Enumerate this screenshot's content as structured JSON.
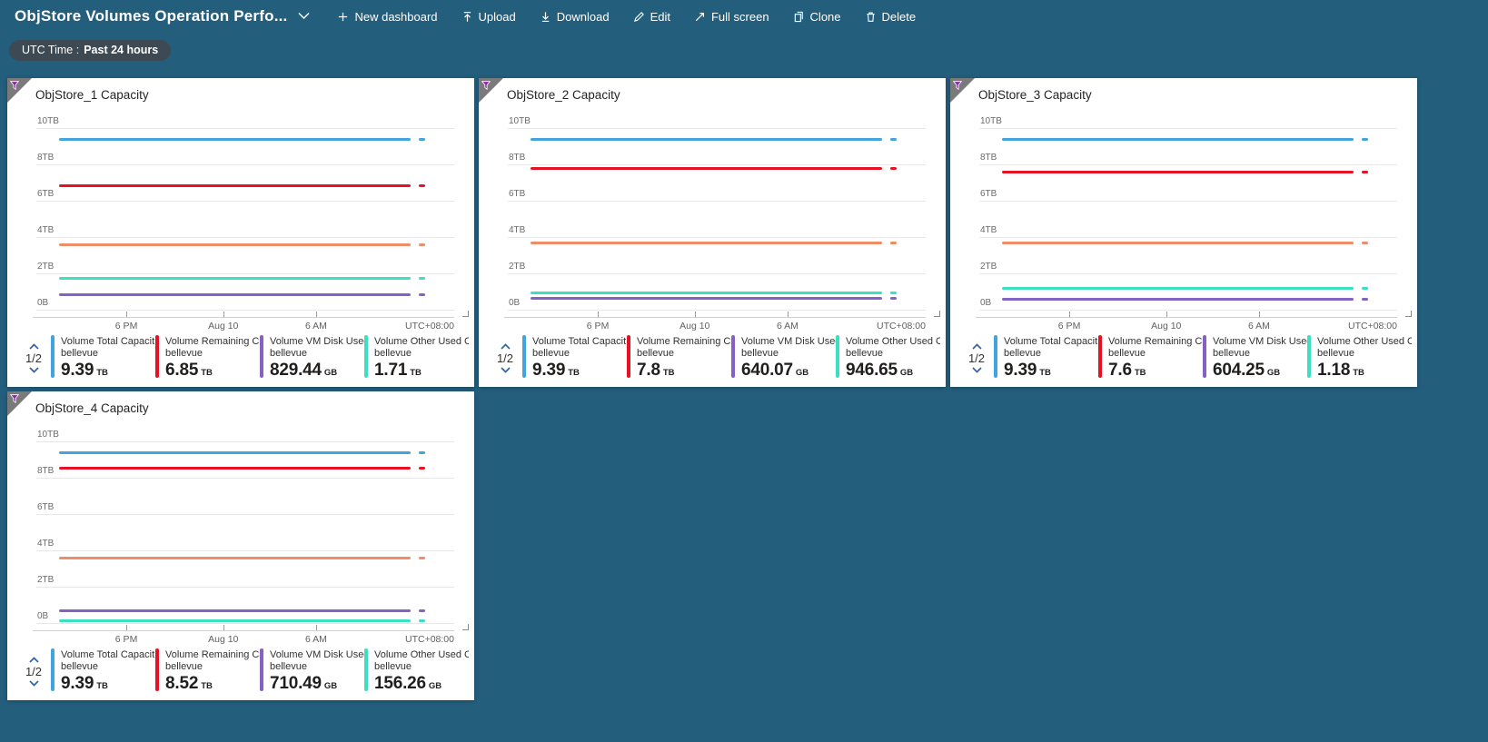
{
  "colors": {
    "page_bg": "#235E7D",
    "pill_bg": "#3D4A53",
    "pager_blue": "#3063A8",
    "corner_gray": "#7A7A7A",
    "funnel_purple": "#8A24A8",
    "blue": "#41A4DD",
    "red": "#E81123",
    "purple": "#8661C5",
    "teal": "#3BE0C0",
    "orange": "#EF8D69"
  },
  "topbar": {
    "title": "ObjStore Volumes Operation Perfo...",
    "menu": [
      {
        "label": "New dashboard",
        "icon": "plus-icon"
      },
      {
        "label": "Upload",
        "icon": "upload-icon"
      },
      {
        "label": "Download",
        "icon": "download-icon"
      },
      {
        "label": "Edit",
        "icon": "pencil-icon"
      },
      {
        "label": "Full screen",
        "icon": "fullscreen-icon"
      },
      {
        "label": "Clone",
        "icon": "clone-icon"
      },
      {
        "label": "Delete",
        "icon": "trash-icon"
      }
    ]
  },
  "filter_pill": {
    "label": "UTC Time :",
    "value": "Past 24 hours"
  },
  "axis": {
    "y_ticks": [
      "10TB",
      "8TB",
      "6TB",
      "4TB",
      "2TB",
      "0B"
    ],
    "x_ticks": [
      "6 PM",
      "Aug 10",
      "6 AM"
    ],
    "timezone": "UTC+08:00"
  },
  "tiles": [
    {
      "title": "ObjStore_1 Capacity",
      "pagination": "1/2",
      "legend": [
        {
          "name": "Volume Total Capacit...",
          "resource": "bellevue",
          "value": "9.39",
          "unit": "TB",
          "color": "#41A4DD"
        },
        {
          "name": "Volume Remaining Cap...",
          "resource": "bellevue",
          "value": "6.85",
          "unit": "TB",
          "color": "#E81123"
        },
        {
          "name": "Volume VM Disk Used ...",
          "resource": "bellevue",
          "value": "829.44",
          "unit": "GB",
          "color": "#8661C5"
        },
        {
          "name": "Volume Other Used Ca...",
          "resource": "bellevue",
          "value": "1.71",
          "unit": "TB",
          "color": "#3BE0C0"
        }
      ]
    },
    {
      "title": "ObjStore_2 Capacity",
      "pagination": "1/2",
      "legend": [
        {
          "name": "Volume Total Capacit...",
          "resource": "bellevue",
          "value": "9.39",
          "unit": "TB",
          "color": "#41A4DD"
        },
        {
          "name": "Volume Remaining Cap...",
          "resource": "bellevue",
          "value": "7.8",
          "unit": "TB",
          "color": "#E81123"
        },
        {
          "name": "Volume VM Disk Used ...",
          "resource": "bellevue",
          "value": "640.07",
          "unit": "GB",
          "color": "#8661C5"
        },
        {
          "name": "Volume Other Used Ca...",
          "resource": "bellevue",
          "value": "946.65",
          "unit": "GB",
          "color": "#3BE0C0"
        }
      ]
    },
    {
      "title": "ObjStore_3 Capacity",
      "pagination": "1/2",
      "legend": [
        {
          "name": "Volume Total Capacit...",
          "resource": "bellevue",
          "value": "9.39",
          "unit": "TB",
          "color": "#41A4DD"
        },
        {
          "name": "Volume Remaining Cap...",
          "resource": "bellevue",
          "value": "7.6",
          "unit": "TB",
          "color": "#E81123"
        },
        {
          "name": "Volume VM Disk Used ...",
          "resource": "bellevue",
          "value": "604.25",
          "unit": "GB",
          "color": "#8661C5"
        },
        {
          "name": "Volume Other Used Ca...",
          "resource": "bellevue",
          "value": "1.18",
          "unit": "TB",
          "color": "#3BE0C0"
        }
      ]
    },
    {
      "title": "ObjStore_4 Capacity",
      "pagination": "1/2",
      "legend": [
        {
          "name": "Volume Total Capacit...",
          "resource": "bellevue",
          "value": "9.39",
          "unit": "TB",
          "color": "#41A4DD"
        },
        {
          "name": "Volume Remaining Cap...",
          "resource": "bellevue",
          "value": "8.52",
          "unit": "TB",
          "color": "#E81123"
        },
        {
          "name": "Volume VM Disk Used ...",
          "resource": "bellevue",
          "value": "710.49",
          "unit": "GB",
          "color": "#8661C5"
        },
        {
          "name": "Volume Other Used Ca...",
          "resource": "bellevue",
          "value": "156.26",
          "unit": "GB",
          "color": "#3BE0C0"
        }
      ]
    }
  ],
  "chart_data": [
    {
      "type": "line",
      "title": "ObjStore_1 Capacity",
      "x_axis": {
        "range": "Past 24 hours",
        "ticks": [
          "6 PM",
          "Aug 10",
          "6 AM"
        ],
        "timezone": "UTC+08:00"
      },
      "y_axis": {
        "tick_labels": [
          "10TB",
          "8TB",
          "6TB",
          "4TB",
          "2TB",
          "0B"
        ],
        "min_tb": 0,
        "max_tb": 10,
        "gridlines": true
      },
      "series": [
        {
          "name": "Volume Total Capacit...",
          "resource": "bellevue",
          "color": "#41A4DD",
          "constant": true,
          "value_tb": 9.39,
          "value_display": "9.39 TB"
        },
        {
          "name": "Volume Remaining Cap...",
          "resource": "bellevue",
          "color": "#E81123",
          "constant": true,
          "value_tb": 6.85,
          "value_display": "6.85 TB"
        },
        {
          "name": "Volume VM Disk Used ...",
          "resource": "bellevue",
          "color": "#8661C5",
          "constant": true,
          "value_tb": 0.81,
          "value_display": "829.44 GB"
        },
        {
          "name": "Volume Other Used Ca...",
          "resource": "bellevue",
          "color": "#3BE0C0",
          "constant": true,
          "value_tb": 1.71,
          "value_display": "1.71 TB"
        },
        {
          "name": "",
          "note": "series from legend page 2/2, label not visible",
          "color": "#EF8D69",
          "constant": true,
          "value_tb": 3.6
        }
      ]
    },
    {
      "type": "line",
      "title": "ObjStore_2 Capacity",
      "x_axis": {
        "range": "Past 24 hours",
        "ticks": [
          "6 PM",
          "Aug 10",
          "6 AM"
        ],
        "timezone": "UTC+08:00"
      },
      "y_axis": {
        "tick_labels": [
          "10TB",
          "8TB",
          "6TB",
          "4TB",
          "2TB",
          "0B"
        ],
        "min_tb": 0,
        "max_tb": 10,
        "gridlines": true
      },
      "series": [
        {
          "name": "Volume Total Capacit...",
          "resource": "bellevue",
          "color": "#41A4DD",
          "constant": true,
          "value_tb": 9.39,
          "value_display": "9.39 TB"
        },
        {
          "name": "Volume Remaining Cap...",
          "resource": "bellevue",
          "color": "#E81123",
          "constant": true,
          "value_tb": 7.8,
          "value_display": "7.8 TB"
        },
        {
          "name": "Volume VM Disk Used ...",
          "resource": "bellevue",
          "color": "#8661C5",
          "constant": true,
          "value_tb": 0.63,
          "value_display": "640.07 GB"
        },
        {
          "name": "Volume Other Used Ca...",
          "resource": "bellevue",
          "color": "#3BE0C0",
          "constant": true,
          "value_tb": 0.92,
          "value_display": "946.65 GB"
        },
        {
          "name": "",
          "note": "series from legend page 2/2, label not visible",
          "color": "#EF8D69",
          "constant": true,
          "value_tb": 3.7
        }
      ]
    },
    {
      "type": "line",
      "title": "ObjStore_3 Capacity",
      "x_axis": {
        "range": "Past 24 hours",
        "ticks": [
          "6 PM",
          "Aug 10",
          "6 AM"
        ],
        "timezone": "UTC+08:00"
      },
      "y_axis": {
        "tick_labels": [
          "10TB",
          "8TB",
          "6TB",
          "4TB",
          "2TB",
          "0B"
        ],
        "min_tb": 0,
        "max_tb": 10,
        "gridlines": true
      },
      "series": [
        {
          "name": "Volume Total Capacit...",
          "resource": "bellevue",
          "color": "#41A4DD",
          "constant": true,
          "value_tb": 9.39,
          "value_display": "9.39 TB"
        },
        {
          "name": "Volume Remaining Cap...",
          "resource": "bellevue",
          "color": "#E81123",
          "constant": true,
          "value_tb": 7.6,
          "value_display": "7.6 TB"
        },
        {
          "name": "Volume VM Disk Used ...",
          "resource": "bellevue",
          "color": "#8661C5",
          "constant": true,
          "value_tb": 0.59,
          "value_display": "604.25 GB"
        },
        {
          "name": "Volume Other Used Ca...",
          "resource": "bellevue",
          "color": "#3BE0C0",
          "constant": true,
          "value_tb": 1.18,
          "value_display": "1.18 TB"
        },
        {
          "name": "",
          "note": "series from legend page 2/2, label not visible",
          "color": "#EF8D69",
          "constant": true,
          "value_tb": 3.7
        }
      ]
    },
    {
      "type": "line",
      "title": "ObjStore_4 Capacity",
      "x_axis": {
        "range": "Past 24 hours",
        "ticks": [
          "6 PM",
          "Aug 10",
          "6 AM"
        ],
        "timezone": "UTC+08:00"
      },
      "y_axis": {
        "tick_labels": [
          "10TB",
          "8TB",
          "6TB",
          "4TB",
          "2TB",
          "0B"
        ],
        "min_tb": 0,
        "max_tb": 10,
        "gridlines": true
      },
      "series": [
        {
          "name": "Volume Total Capacit...",
          "resource": "bellevue",
          "color": "#41A4DD",
          "constant": true,
          "value_tb": 9.39,
          "value_display": "9.39 TB"
        },
        {
          "name": "Volume Remaining Cap...",
          "resource": "bellevue",
          "color": "#E81123",
          "constant": true,
          "value_tb": 8.52,
          "value_display": "8.52 TB"
        },
        {
          "name": "Volume VM Disk Used ...",
          "resource": "bellevue",
          "color": "#8661C5",
          "constant": true,
          "value_tb": 0.69,
          "value_display": "710.49 GB"
        },
        {
          "name": "Volume Other Used Ca...",
          "resource": "bellevue",
          "color": "#3BE0C0",
          "constant": true,
          "value_tb": 0.15,
          "value_display": "156.26 GB"
        },
        {
          "name": "",
          "note": "series from legend page 2/2, label not visible",
          "color": "#EF8D69",
          "constant": true,
          "value_tb": 3.6
        }
      ]
    }
  ]
}
